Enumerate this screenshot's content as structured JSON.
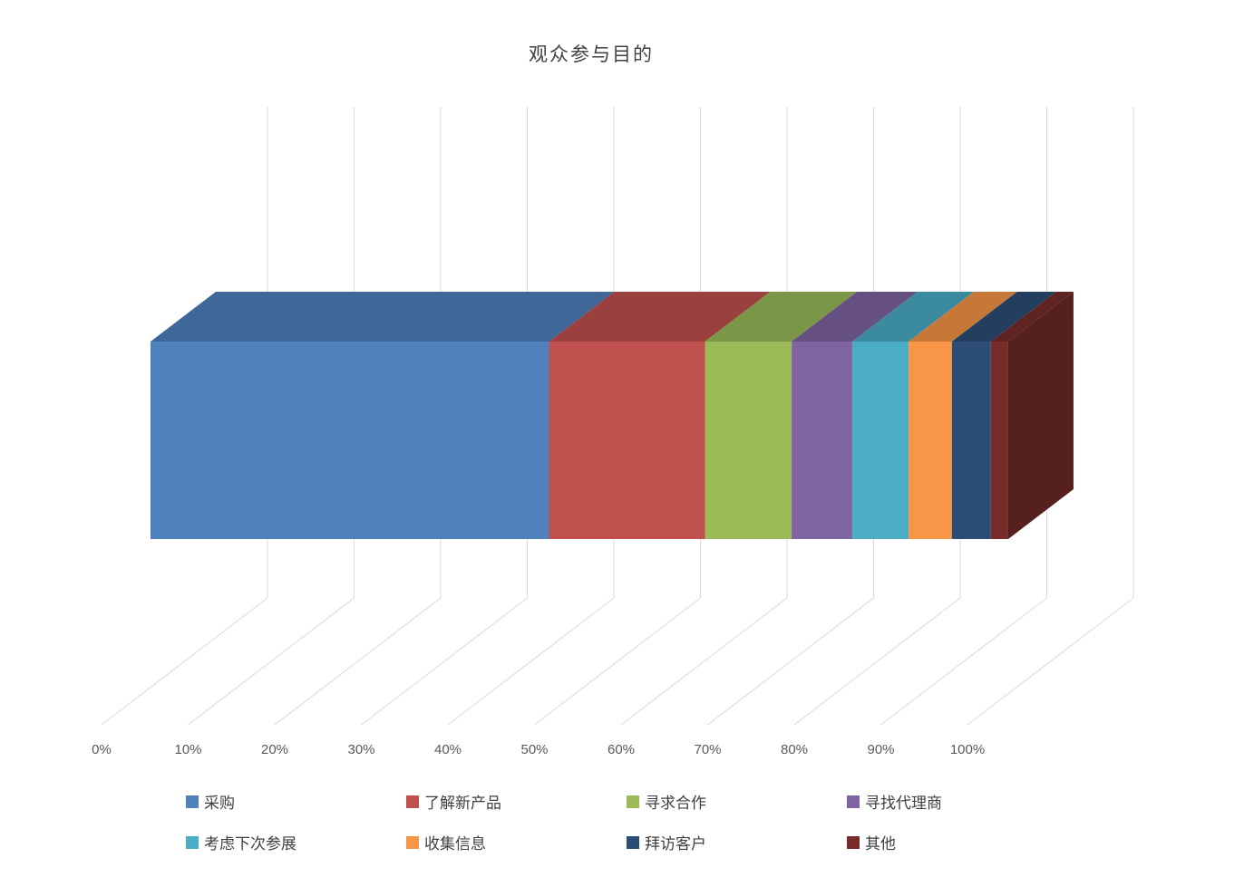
{
  "title": "观众参与目的",
  "chart_data": {
    "type": "bar",
    "subtype": "3d-horizontal-100pct-stacked",
    "title": "观众参与目的",
    "orientation": "horizontal",
    "categories": [
      "观众参与目的"
    ],
    "series": [
      {
        "name": "采购",
        "value": 46,
        "color": "#4F81BD"
      },
      {
        "name": "了解新产品",
        "value": 18,
        "color": "#C0504D"
      },
      {
        "name": "寻求合作",
        "value": 10,
        "color": "#9BBB59"
      },
      {
        "name": "寻找代理商",
        "value": 7,
        "color": "#8064A2"
      },
      {
        "name": "考虑下次参展",
        "value": 6.5,
        "color": "#4BACC6"
      },
      {
        "name": "收集信息",
        "value": 5,
        "color": "#F79646"
      },
      {
        "name": "拜访客户",
        "value": 4.5,
        "color": "#2C4D75"
      },
      {
        "name": "其他",
        "value": 2,
        "color": "#772C2A"
      }
    ],
    "unit": "%",
    "x_axis": {
      "min": 0,
      "max": 100,
      "step": 10,
      "tick_labels": [
        "0%",
        "10%",
        "20%",
        "30%",
        "40%",
        "50%",
        "60%",
        "70%",
        "80%",
        "90%",
        "100%"
      ]
    },
    "grid": true,
    "legend_position": "bottom",
    "legend_rows": [
      [
        0,
        1,
        2,
        3
      ],
      [
        4,
        5,
        6,
        7
      ]
    ],
    "colors": {
      "background": "#FFFFFF",
      "gridline": "#D9D9D9",
      "axis_label": "#595959",
      "title_text": "#404040",
      "legend_text": "#404040"
    }
  }
}
